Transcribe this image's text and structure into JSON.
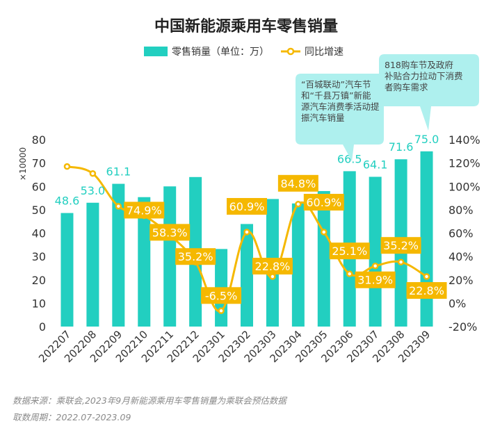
{
  "chart_data": {
    "type": "bar+line",
    "title": "中国新能源乘用车零售销量",
    "y_unit_label": "×10000",
    "legend": {
      "bar_label": "零售销量（单位：万）",
      "line_label": "同比增速",
      "placement": "top-center"
    },
    "categories": [
      "202207",
      "202208",
      "202209",
      "202210",
      "202211",
      "202212",
      "202301",
      "202302",
      "202303",
      "202304",
      "202305",
      "202306",
      "202307",
      "202308",
      "202309"
    ],
    "series": [
      {
        "name": "零售销量（单位：万）",
        "axis": "left",
        "values": [
          48.6,
          53.0,
          61.1,
          55.4,
          60.0,
          64.0,
          33.2,
          43.9,
          54.6,
          52.7,
          58.0,
          66.5,
          64.1,
          71.6,
          75.0
        ],
        "labels": [
          "48.6",
          "53.0",
          "61.1",
          "",
          "",
          "",
          "",
          "",
          "",
          "",
          "",
          "66.5",
          "64.1",
          "71.6",
          "75.0"
        ]
      },
      {
        "name": "同比增速",
        "axis": "right",
        "values": [
          117,
          111,
          83,
          74.9,
          58.3,
          35.2,
          -6.5,
          60.9,
          22.8,
          84.8,
          60.9,
          25.1,
          31.9,
          35.2,
          22.8
        ],
        "labels": [
          "",
          "",
          "",
          "74.9%",
          "58.3%",
          "35.2%",
          "-6.5%",
          "60.9%",
          "22.8%",
          "84.8%",
          "60.9%",
          "25.1%",
          "31.9%",
          "35.2%",
          "22.8%"
        ]
      }
    ],
    "y_left": {
      "min": 0,
      "max": 80,
      "ticks": [
        "0",
        "10",
        "20",
        "30",
        "40",
        "50",
        "60",
        "70",
        "80"
      ]
    },
    "y_right": {
      "min": -20,
      "max": 140,
      "ticks": [
        "-20%",
        "0%",
        "20%",
        "40%",
        "60%",
        "80%",
        "100%",
        "120%",
        "140%"
      ]
    },
    "grid": false,
    "annotations": [
      {
        "text": "“百城联动”汽车节和“千县万镇”新能源汽车消费季活动提振汽车销量",
        "target_category": "202306"
      },
      {
        "text": "818购车节及政府补贴合力拉动下消费者购车需求",
        "target_category": "202309"
      }
    ],
    "colors": {
      "bar": "#22cfc0",
      "line": "#f5b800",
      "label_bg": "#f5b800",
      "bar_label": "#22cfc0",
      "callout": "#aef0ee",
      "axis_text": "#333333"
    }
  },
  "footer": {
    "source": "数据来源：乘联会,2023年9月新能源乘用车零售销量为乘联会预估数据",
    "period": "取数周期：2022.07-2023.09"
  }
}
